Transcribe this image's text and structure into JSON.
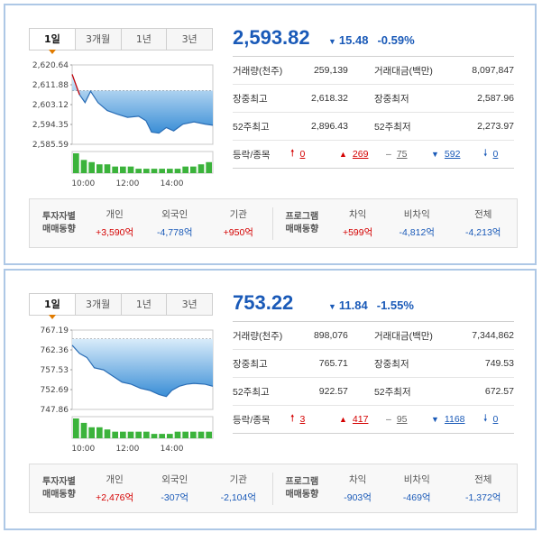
{
  "tabs": [
    "1일",
    "3개월",
    "1년",
    "3년"
  ],
  "markets": [
    {
      "index_value": "2,593.82",
      "change": "15.48",
      "change_pct": "-0.59%",
      "stats": {
        "volume_label": "거래량(천주)",
        "volume": "259,139",
        "amount_label": "거래대금(백만)",
        "amount": "8,097,847",
        "day_high_label": "장중최고",
        "day_high": "2,618.32",
        "day_low_label": "장중최저",
        "day_low": "2,587.96",
        "week52_high_label": "52주최고",
        "week52_high": "2,896.43",
        "week52_low_label": "52주최저",
        "week52_low": "2,273.97",
        "updown_label": "등락/종목",
        "upper_limit": "0",
        "up": "269",
        "flat": "75",
        "down": "592",
        "lower_limit": "0"
      },
      "investors": {
        "title_line1": "투자자별",
        "title_line2": "매매동향",
        "individual_label": "개인",
        "individual": "+3,590억",
        "foreign_label": "외국인",
        "foreign": "-4,778억",
        "institution_label": "기관",
        "institution": "+950억",
        "program_line1": "프로그램",
        "program_line2": "매매동향",
        "arbitrage_label": "차익",
        "arbitrage": "+599억",
        "non_arbitrage_label": "비차익",
        "non_arbitrage": "-4,812억",
        "total_label": "전체",
        "total": "-4,213억"
      },
      "chart_data": {
        "type": "area",
        "y_ticks": [
          "2,620.64",
          "2,611.88",
          "2,603.12",
          "2,594.35",
          "2,585.59"
        ],
        "ylim": [
          2585.59,
          2620.64
        ],
        "prev_close": 2609.3,
        "x_ticks": [
          "10:00",
          "12:00",
          "14:00"
        ],
        "x_minutes": [
          0,
          20,
          35,
          50,
          70,
          95,
          120,
          150,
          180,
          200,
          215,
          235,
          255,
          275,
          300,
          330,
          360,
          381
        ],
        "values": [
          2616.5,
          2607.5,
          2604,
          2609,
          2604,
          2600.5,
          2599,
          2597.5,
          2598,
          2596,
          2591,
          2590.5,
          2593,
          2591.5,
          2594.5,
          2595.5,
          2594.5,
          2594
        ],
        "volume": [
          9,
          6,
          5,
          4,
          4,
          3,
          3,
          3,
          2,
          2,
          2,
          2,
          2,
          2,
          3,
          3,
          4,
          5
        ]
      }
    },
    {
      "index_value": "753.22",
      "change": "11.84",
      "change_pct": "-1.55%",
      "stats": {
        "volume_label": "거래량(천주)",
        "volume": "898,076",
        "amount_label": "거래대금(백만)",
        "amount": "7,344,862",
        "day_high_label": "장중최고",
        "day_high": "765.71",
        "day_low_label": "장중최저",
        "day_low": "749.53",
        "week52_high_label": "52주최고",
        "week52_high": "922.57",
        "week52_low_label": "52주최저",
        "week52_low": "672.57",
        "updown_label": "등락/종목",
        "upper_limit": "3",
        "up": "417",
        "flat": "95",
        "down": "1168",
        "lower_limit": "0"
      },
      "investors": {
        "title_line1": "투자자별",
        "title_line2": "매매동향",
        "individual_label": "개인",
        "individual": "+2,476억",
        "foreign_label": "외국인",
        "foreign": "-307억",
        "institution_label": "기관",
        "institution": "-2,104억",
        "program_line1": "프로그램",
        "program_line2": "매매동향",
        "arbitrage_label": "차익",
        "arbitrage": "-903억",
        "non_arbitrage_label": "비차익",
        "non_arbitrage": "-469억",
        "total_label": "전체",
        "total": "-1,372억"
      },
      "chart_data": {
        "type": "area",
        "y_ticks": [
          "767.19",
          "762.36",
          "757.53",
          "752.69",
          "747.86"
        ],
        "ylim": [
          747.86,
          767.19
        ],
        "prev_close": 765.06,
        "x_ticks": [
          "10:00",
          "12:00",
          "14:00"
        ],
        "x_minutes": [
          0,
          20,
          40,
          60,
          85,
          110,
          135,
          160,
          185,
          210,
          235,
          255,
          270,
          290,
          310,
          330,
          360,
          381
        ],
        "values": [
          763.5,
          761.5,
          760.5,
          758,
          757.5,
          756,
          754.5,
          754,
          753,
          752.5,
          751.5,
          751,
          752.5,
          753.5,
          754,
          754.2,
          754,
          753.5
        ],
        "volume": [
          9,
          7,
          5,
          5,
          4,
          3,
          3,
          3,
          3,
          3,
          2,
          2,
          2,
          3,
          3,
          3,
          3,
          3
        ]
      }
    }
  ]
}
